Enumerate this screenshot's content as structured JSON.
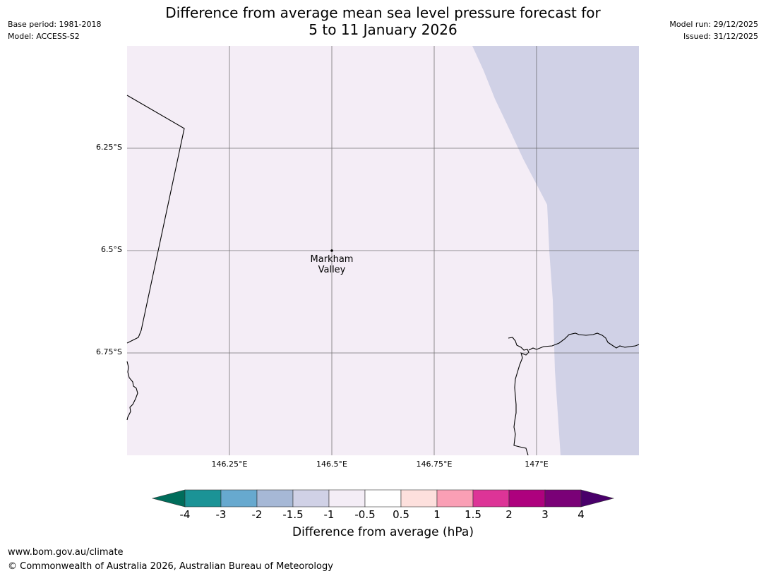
{
  "title": {
    "line1": "Difference from average mean sea level pressure forecast for",
    "line2": "5 to 11 January 2026"
  },
  "meta": {
    "base_period": "Base period: 1981-2018",
    "model": "Model: ACCESS-S2",
    "model_run": "Model run: 29/12/2025",
    "issued": "Issued: 31/12/2025"
  },
  "map": {
    "lat_labels": [
      "6.25°S",
      "6.5°S",
      "6.75°S"
    ],
    "lon_labels": [
      "146.25°E",
      "146.5°E",
      "146.75°E",
      "147°E"
    ],
    "place": {
      "line1": "Markham",
      "line2": "Valley"
    },
    "colors": {
      "land_anomaly": "#f4edf6",
      "sea_anomaly": "#d0d1e6",
      "grid": "#555555",
      "coast": "#000000"
    }
  },
  "colorbar": {
    "ticks": [
      "-4",
      "-3",
      "-2",
      "-1.5",
      "-1",
      "-0.5",
      "0.5",
      "1",
      "1.5",
      "2",
      "3",
      "4"
    ],
    "colors": [
      "#1b9396",
      "#67a9cf",
      "#a6b8d6",
      "#d0d1e6",
      "#f4edf6",
      "#ffffff",
      "#fde0dd",
      "#fa9fb5",
      "#dd3497",
      "#ae017e",
      "#7a0177"
    ],
    "under_color": "#006d5b",
    "over_color": "#49006a",
    "label": "Difference from average (hPa)"
  },
  "footer": {
    "url": "www.bom.gov.au/climate",
    "copyright": "© Commonwealth of Australia 2026, Australian Bureau of Meteorology"
  }
}
